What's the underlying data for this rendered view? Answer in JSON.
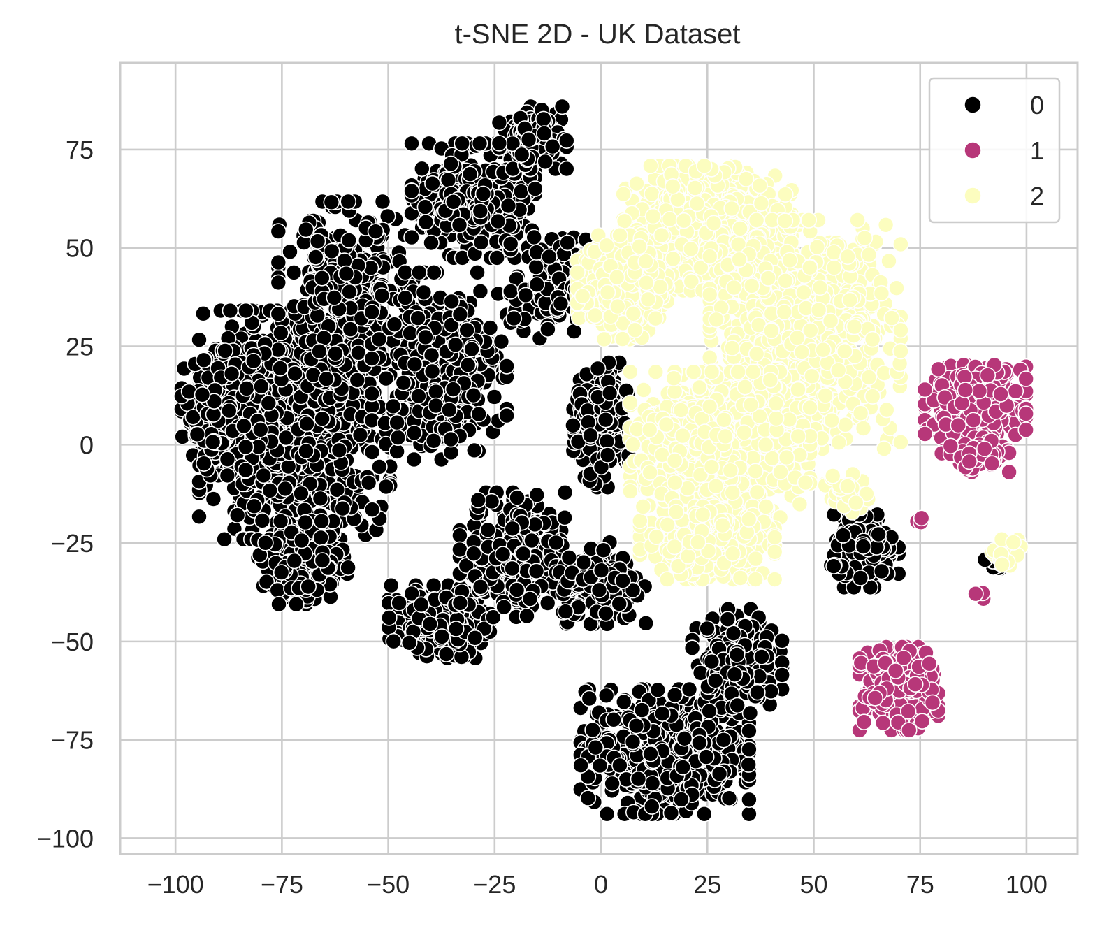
{
  "chart_data": {
    "type": "scatter",
    "title": "t-SNE 2D - UK Dataset",
    "xlabel": "",
    "ylabel": "",
    "xlim": [
      -113,
      112
    ],
    "ylim": [
      -104,
      97
    ],
    "xticks": [
      -100,
      -75,
      -50,
      -25,
      0,
      25,
      50,
      75,
      100
    ],
    "yticks": [
      -100,
      -75,
      -50,
      -25,
      0,
      25,
      50,
      75
    ],
    "grid": true,
    "legend": {
      "position": "top-right",
      "entries": [
        "0",
        "1",
        "2"
      ]
    },
    "colors": {
      "0": "#000000",
      "1": "#b73779",
      "2": "#fcfdbf"
    },
    "series": [
      {
        "name": "0",
        "color": "#000000",
        "regions": [
          {
            "center": [
              -72,
              5
            ],
            "spread": [
              17,
              22
            ],
            "count": 950
          },
          {
            "center": [
              -88,
              8
            ],
            "spread": [
              8,
              12
            ],
            "count": 260
          },
          {
            "center": [
              -60,
              38
            ],
            "spread": [
              12,
              18
            ],
            "count": 300
          },
          {
            "center": [
              -70,
              -30
            ],
            "spread": [
              8,
              8
            ],
            "count": 200
          },
          {
            "center": [
              -38,
              20
            ],
            "spread": [
              12,
              18
            ],
            "count": 350
          },
          {
            "center": [
              -30,
              62
            ],
            "spread": [
              11,
              11
            ],
            "count": 330
          },
          {
            "center": [
              -16,
              78
            ],
            "spread": [
              6,
              6
            ],
            "count": 130
          },
          {
            "center": [
              -38,
              -45
            ],
            "spread": [
              9,
              7
            ],
            "count": 230
          },
          {
            "center": [
              -20,
              -28
            ],
            "spread": [
              10,
              12
            ],
            "count": 280
          },
          {
            "center": [
              0,
              5
            ],
            "spread": [
              5,
              12
            ],
            "count": 220
          },
          {
            "center": [
              -12,
              40
            ],
            "spread": [
              7,
              10
            ],
            "count": 130
          },
          {
            "center": [
              0,
              -35
            ],
            "spread": [
              8,
              8
            ],
            "count": 180
          },
          {
            "center": [
              15,
              -78
            ],
            "spread": [
              15,
              12
            ],
            "count": 600
          },
          {
            "center": [
              32,
              -55
            ],
            "spread": [
              8,
              10
            ],
            "count": 220
          },
          {
            "center": [
              62,
              -27
            ],
            "spread": [
              6,
              7
            ],
            "count": 180
          },
          {
            "center": [
              93,
              -30
            ],
            "spread": [
              3,
              2
            ],
            "count": 14
          }
        ]
      },
      {
        "name": "1",
        "color": "#b73779",
        "regions": [
          {
            "center": [
              88,
              11
            ],
            "spread": [
              9,
              7
            ],
            "count": 340
          },
          {
            "center": [
              88,
              -3
            ],
            "spread": [
              6,
              3
            ],
            "count": 90
          },
          {
            "center": [
              70,
              -62
            ],
            "spread": [
              7,
              8
            ],
            "count": 270
          },
          {
            "center": [
              75,
              -20
            ],
            "spread": [
              1.5,
              1.5
            ],
            "count": 4
          },
          {
            "center": [
              90,
              -38
            ],
            "spread": [
              1.5,
              1.5
            ],
            "count": 3
          }
        ]
      },
      {
        "name": "2",
        "color": "#fcfdbf",
        "regions": [
          {
            "center": [
              25,
              55
            ],
            "spread": [
              15,
              12
            ],
            "count": 700
          },
          {
            "center": [
              48,
              28
            ],
            "spread": [
              17,
              22
            ],
            "count": 800
          },
          {
            "center": [
              28,
              0
            ],
            "spread": [
              16,
              14
            ],
            "count": 700
          },
          {
            "center": [
              25,
              -25
            ],
            "spread": [
              12,
              7
            ],
            "count": 350
          },
          {
            "center": [
              5,
              40
            ],
            "spread": [
              8,
              10
            ],
            "count": 300
          },
          {
            "center": [
              58,
              -12
            ],
            "spread": [
              4,
              4
            ],
            "count": 40
          },
          {
            "center": [
              96,
              -28
            ],
            "spread": [
              4,
              3
            ],
            "count": 20
          }
        ]
      }
    ]
  }
}
